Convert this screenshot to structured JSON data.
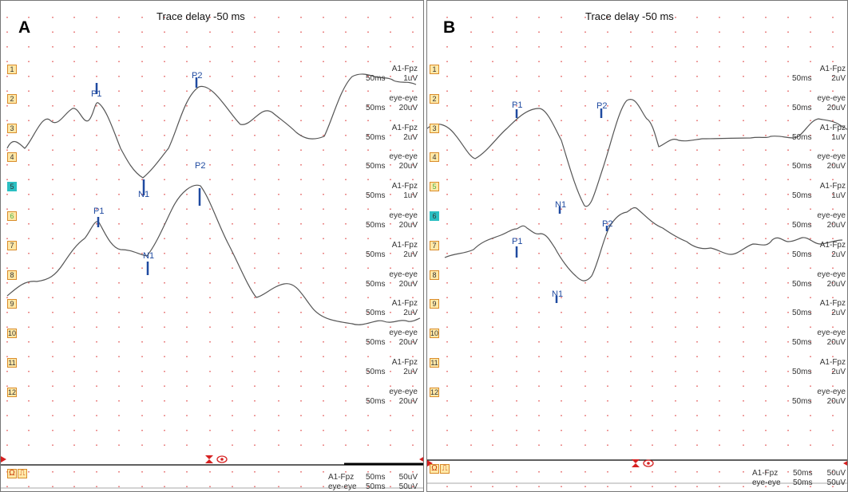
{
  "colors": {
    "marker": "#1f4aa0",
    "trace": "#555555",
    "grid": "#e25252"
  },
  "panels": [
    {
      "id": "A",
      "label": "A",
      "title": "Trace delay -50 ms",
      "channels": [
        "1",
        "2",
        "3",
        "4",
        "5",
        "6",
        "7",
        "8",
        "9",
        "10",
        "11",
        "12"
      ],
      "active_channel": "5",
      "green_channel": "6",
      "right_labels": [
        {
          "name": "A1-Fpz",
          "ms": "50ms",
          "gain": "1uV"
        },
        {
          "name": "eye-eye",
          "ms": "50ms",
          "gain": "20uV"
        },
        {
          "name": "A1-Fpz",
          "ms": "50ms",
          "gain": "2uV"
        },
        {
          "name": "eye-eye",
          "ms": "50ms",
          "gain": "20uV"
        },
        {
          "name": "A1-Fpz",
          "ms": "50ms",
          "gain": "1uV"
        },
        {
          "name": "eye-eye",
          "ms": "50ms",
          "gain": "20uV"
        },
        {
          "name": "A1-Fpz",
          "ms": "50ms",
          "gain": "2uV"
        },
        {
          "name": "eye-eye",
          "ms": "50ms",
          "gain": "20uV"
        },
        {
          "name": "A1-Fpz",
          "ms": "50ms",
          "gain": "2uV"
        },
        {
          "name": "eye-eye",
          "ms": "50ms",
          "gain": "20uV"
        },
        {
          "name": "A1-Fpz",
          "ms": "50ms",
          "gain": "2uV"
        },
        {
          "name": "eye-eye",
          "ms": "50ms",
          "gain": "20uV"
        }
      ],
      "peaks": [
        "P1",
        "N1",
        "P2",
        "P1",
        "N1",
        "P2"
      ],
      "bottom_rows": [
        {
          "name": "A1-Fpz",
          "ms": "50ms",
          "gain": "50uV"
        },
        {
          "name": "eye-eye",
          "ms": "50ms",
          "gain": "50uV"
        }
      ]
    },
    {
      "id": "B",
      "label": "B",
      "title": "Trace delay -50 ms",
      "channels": [
        "1",
        "2",
        "3",
        "4",
        "5",
        "6",
        "7",
        "8",
        "9",
        "10",
        "11",
        "12"
      ],
      "active_channel": "6",
      "green_channel": "5",
      "right_labels": [
        {
          "name": "A1-Fpz",
          "ms": "50ms",
          "gain": "2uV"
        },
        {
          "name": "eye-eye",
          "ms": "50ms",
          "gain": "20uV"
        },
        {
          "name": "A1-Fpz",
          "ms": "50ms",
          "gain": "1uV"
        },
        {
          "name": "eye-eye",
          "ms": "50ms",
          "gain": "20uV"
        },
        {
          "name": "A1-Fpz",
          "ms": "50ms",
          "gain": "1uV"
        },
        {
          "name": "eye-eye",
          "ms": "50ms",
          "gain": "20uV"
        },
        {
          "name": "A1-Fpz",
          "ms": "50ms",
          "gain": "2uV"
        },
        {
          "name": "eye-eye",
          "ms": "50ms",
          "gain": "20uV"
        },
        {
          "name": "A1-Fpz",
          "ms": "50ms",
          "gain": "2uV"
        },
        {
          "name": "eye-eye",
          "ms": "50ms",
          "gain": "20uV"
        },
        {
          "name": "A1-Fpz",
          "ms": "50ms",
          "gain": "2uV"
        },
        {
          "name": "eye-eye",
          "ms": "50ms",
          "gain": "20uV"
        }
      ],
      "peaks": [
        "P1",
        "N1",
        "P2",
        "P1",
        "N1",
        "P2"
      ],
      "bottom_rows": [
        {
          "name": "A1-Fpz",
          "ms": "50ms",
          "gain": "50uV"
        },
        {
          "name": "eye-eye",
          "ms": "50ms",
          "gain": "50uV"
        }
      ]
    }
  ],
  "bottom_buttons": [
    "Ω",
    "⎍"
  ]
}
